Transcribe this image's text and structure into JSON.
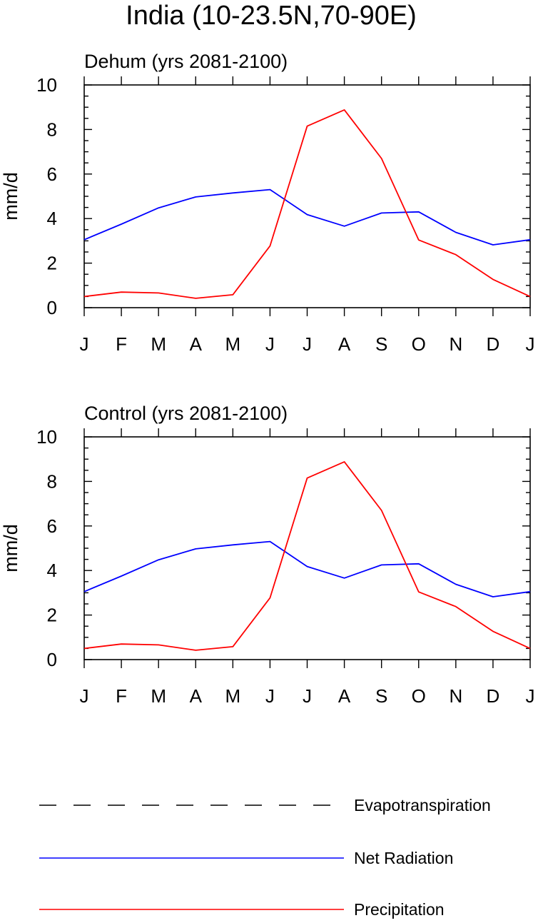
{
  "title": "India (10-23.5N,70-90E)",
  "legend": [
    {
      "label": "Evapotranspiration",
      "color": "#000000",
      "style": "dashed"
    },
    {
      "label": "Net Radiation",
      "color": "#0000ff",
      "style": "solid"
    },
    {
      "label": "Precipitation",
      "color": "#ff0000",
      "style": "solid"
    }
  ],
  "chart_data": [
    {
      "type": "line",
      "title": "Dehum (yrs 2081-2100)",
      "xlabel": "",
      "ylabel": "mm/d",
      "ylim": [
        0,
        10
      ],
      "yticks": [
        "0",
        "2",
        "4",
        "6",
        "8",
        "10"
      ],
      "categories": [
        "J",
        "F",
        "M",
        "A",
        "M",
        "J",
        "J",
        "A",
        "S",
        "O",
        "N",
        "D",
        "J"
      ],
      "series": [
        {
          "name": "Net Radiation",
          "color": "#0000ff",
          "values": [
            3.05,
            3.75,
            4.48,
            4.97,
            5.15,
            5.3,
            4.18,
            3.66,
            4.25,
            4.3,
            3.38,
            2.82,
            3.05
          ]
        },
        {
          "name": "Precipitation",
          "color": "#ff0000",
          "values": [
            0.5,
            0.7,
            0.66,
            0.42,
            0.58,
            2.77,
            8.15,
            8.88,
            6.7,
            3.04,
            2.38,
            1.27,
            0.5
          ]
        }
      ]
    },
    {
      "type": "line",
      "title": "Control (yrs 2081-2100)",
      "xlabel": "",
      "ylabel": "mm/d",
      "ylim": [
        0,
        10
      ],
      "yticks": [
        "0",
        "2",
        "4",
        "6",
        "8",
        "10"
      ],
      "categories": [
        "J",
        "F",
        "M",
        "A",
        "M",
        "J",
        "J",
        "A",
        "S",
        "O",
        "N",
        "D",
        "J"
      ],
      "series": [
        {
          "name": "Net Radiation",
          "color": "#0000ff",
          "values": [
            3.05,
            3.75,
            4.48,
            4.97,
            5.15,
            5.3,
            4.18,
            3.66,
            4.25,
            4.3,
            3.38,
            2.82,
            3.05
          ]
        },
        {
          "name": "Precipitation",
          "color": "#ff0000",
          "values": [
            0.5,
            0.7,
            0.66,
            0.42,
            0.58,
            2.77,
            8.15,
            8.88,
            6.7,
            3.04,
            2.38,
            1.27,
            0.5
          ]
        }
      ]
    }
  ]
}
